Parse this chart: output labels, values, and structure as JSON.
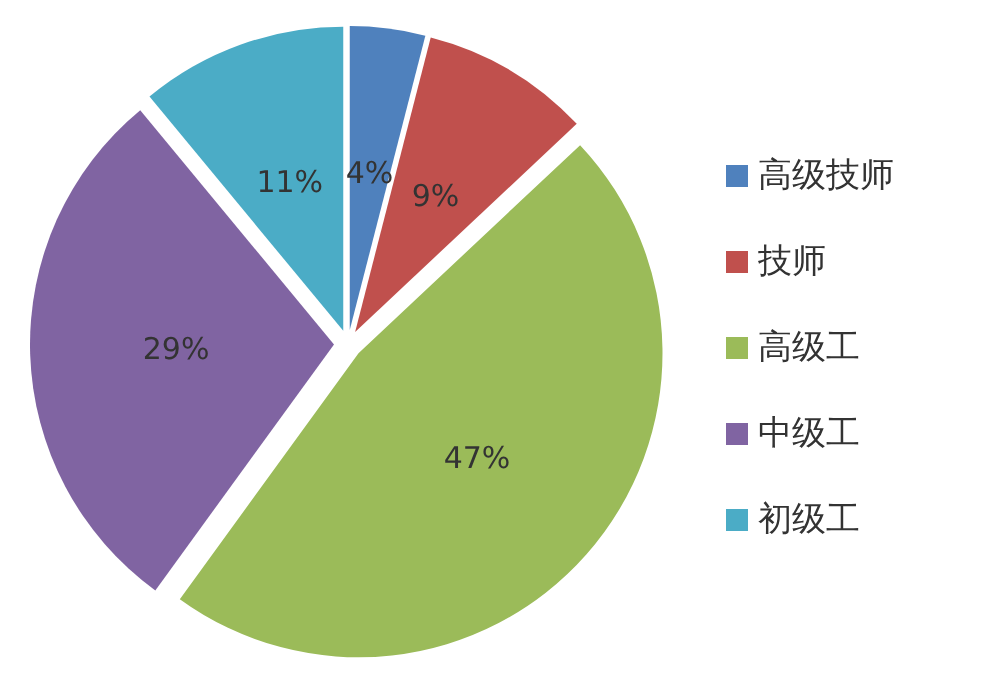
{
  "chart_data": {
    "type": "pie",
    "categories": [
      "高级技师",
      "技师",
      "高级工",
      "中级工",
      "初级工"
    ],
    "values": [
      4,
      9,
      47,
      29,
      11
    ],
    "colors": [
      "#4f81bd",
      "#c0504d",
      "#9bbb59",
      "#8064a2",
      "#4bacc6"
    ],
    "value_labels": [
      "4%",
      "9%",
      "47%",
      "29%",
      "11%"
    ],
    "legend": "right"
  }
}
